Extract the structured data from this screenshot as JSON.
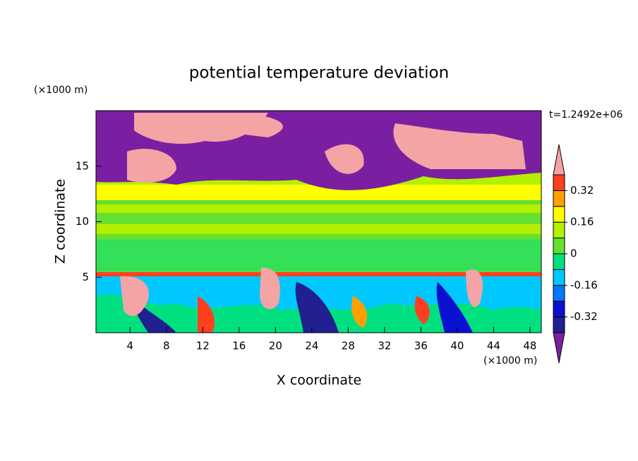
{
  "chart_data": {
    "type": "contour",
    "title": "potential temperature deviation",
    "x_label": "X coordinate",
    "y_label": "Z coordinate",
    "x_unit": "(×1000 m)",
    "y_unit": "(×1000 m)",
    "annotation": "t=1.2492e+06",
    "xlim": [
      0.25,
      49.25
    ],
    "ylim": [
      0,
      20
    ],
    "xticks": [
      4,
      8,
      12,
      16,
      20,
      24,
      28,
      32,
      36,
      40,
      44,
      48
    ],
    "yticks": [
      5,
      10,
      15
    ],
    "colorbar": {
      "levels": [
        -0.4,
        -0.32,
        -0.24,
        -0.16,
        -0.08,
        0,
        0.08,
        0.16,
        0.24,
        0.32,
        0.4
      ],
      "ticks": [
        -0.32,
        -0.16,
        0,
        0.16,
        0.32
      ],
      "colors": [
        "#7b1fa2",
        "#202090",
        "#0a10d0",
        "#0078ff",
        "#00c8ff",
        "#00e080",
        "#66e030",
        "#b4f000",
        "#ffff00",
        "#ffa000",
        "#ff4020",
        "#f4a4a4"
      ]
    }
  }
}
